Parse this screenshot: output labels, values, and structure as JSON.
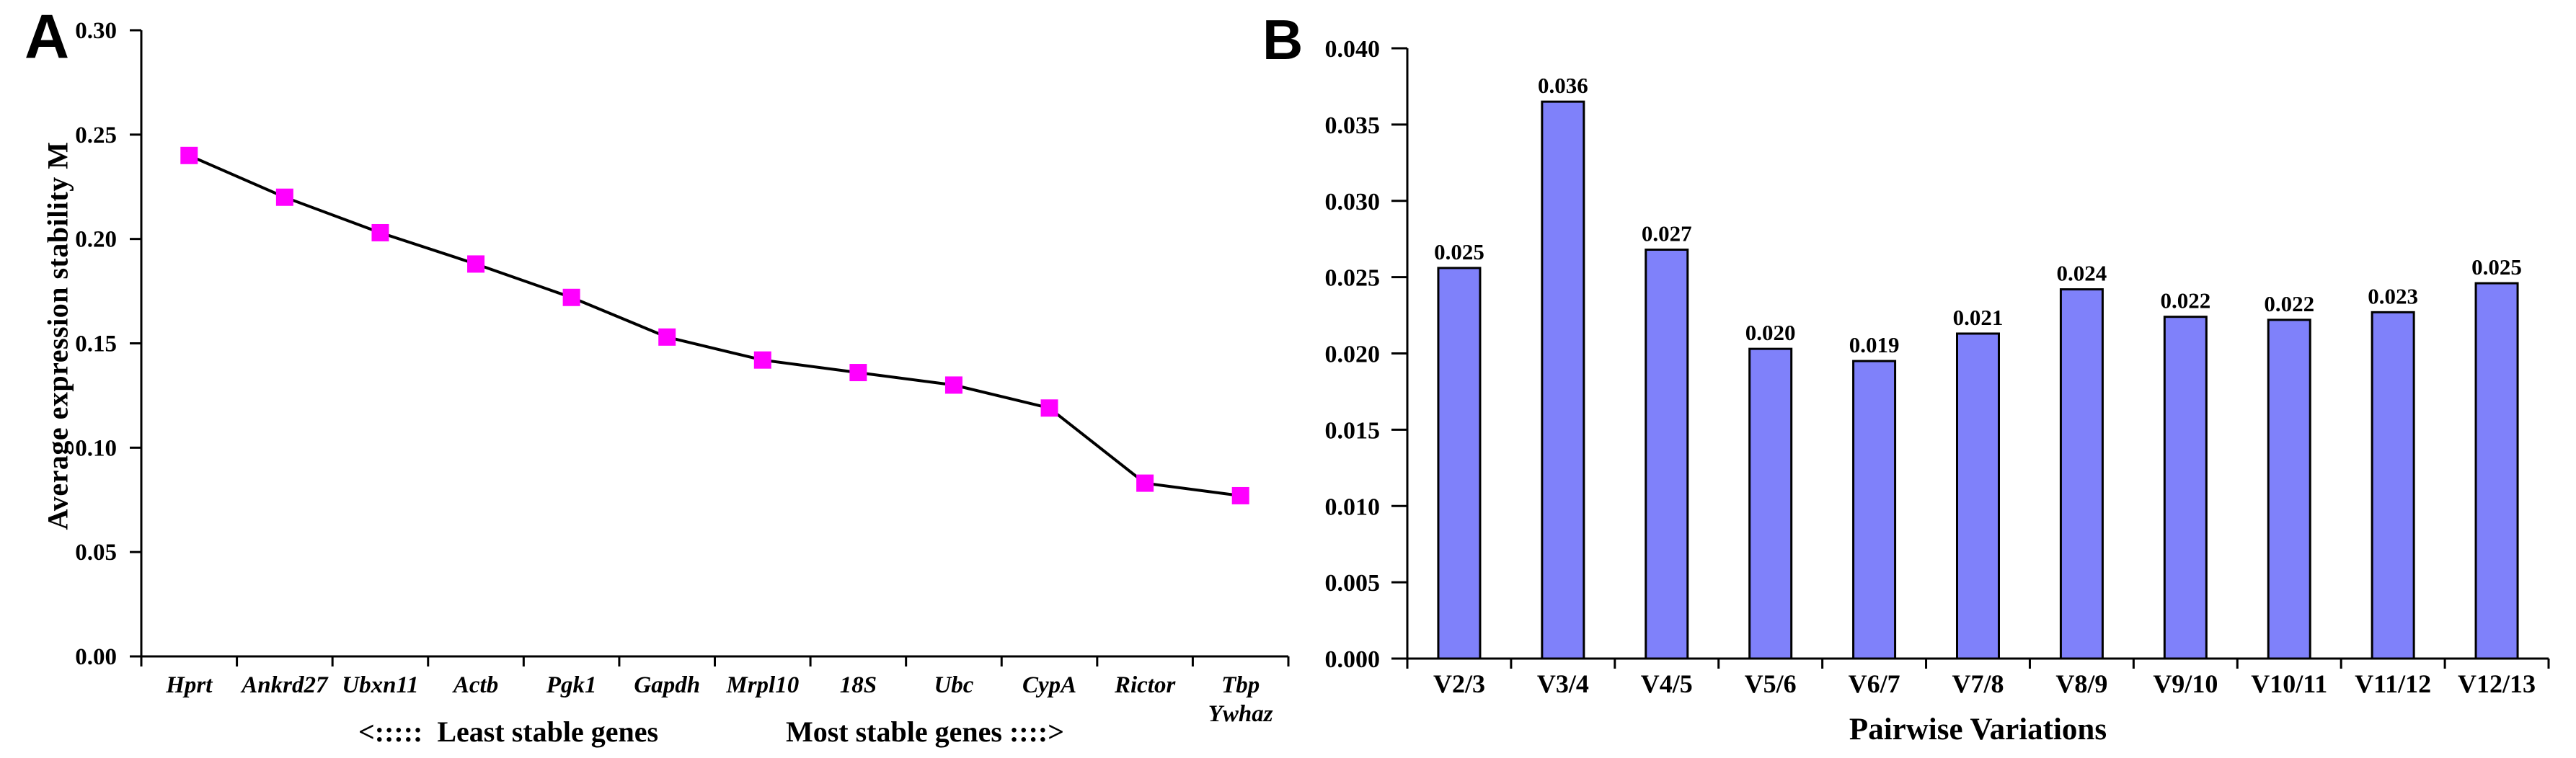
{
  "figure": {
    "panel_a": {
      "label": "A",
      "y_axis_title": "Average expression stability M",
      "annotation_left": "<:::::  Least stable genes",
      "annotation_right": "Most stable genes ::::>"
    },
    "panel_b": {
      "label": "B",
      "x_axis_title": "Pairwise Variations"
    }
  },
  "chart_data": [
    {
      "panel": "A",
      "type": "line",
      "title": "",
      "xlabel": "",
      "ylabel": "Average expression stability M",
      "categories": [
        "Hprt",
        "Ankrd27",
        "Ubxn11",
        "Actb",
        "Pgk1",
        "Gapdh",
        "Mrpl10",
        "18S",
        "Ubc",
        "CypA",
        "Rictor",
        "Tbp\nYwhaz"
      ],
      "values": [
        0.24,
        0.22,
        0.203,
        0.188,
        0.172,
        0.153,
        0.142,
        0.136,
        0.13,
        0.119,
        0.083,
        0.077
      ],
      "ylim": [
        0.0,
        0.3
      ],
      "yticks": [
        "0.30",
        "0.25",
        "0.20",
        "0.15",
        "0.10",
        "0.05",
        "0.00"
      ],
      "grid": false,
      "marker": "square",
      "marker_color": "#FF00FF",
      "line_color": "#000000",
      "axis_color": "#000000",
      "annotation": "<:::::  Least stable genes        Most stable genes ::::>"
    },
    {
      "panel": "B",
      "type": "bar",
      "title": "",
      "xlabel": "Pairwise Variations",
      "ylabel": "",
      "categories": [
        "V2/3",
        "V3/4",
        "V4/5",
        "V5/6",
        "V6/7",
        "V7/8",
        "V8/9",
        "V9/10",
        "V10/11",
        "V11/12",
        "V12/13"
      ],
      "values": [
        0.025,
        0.036,
        0.027,
        0.02,
        0.019,
        0.021,
        0.024,
        0.022,
        0.022,
        0.023,
        0.025
      ],
      "bar_labels": [
        "0.025",
        "0.036",
        "0.027",
        "0.020",
        "0.019",
        "0.021",
        "0.024",
        "0.022",
        "0.022",
        "0.023",
        "0.025"
      ],
      "plotted_heights": [
        0.0256,
        0.0365,
        0.0268,
        0.0203,
        0.0195,
        0.0213,
        0.0242,
        0.0224,
        0.0222,
        0.0227,
        0.0246
      ],
      "ylim": [
        0.0,
        0.04
      ],
      "yticks": [
        "0.040",
        "0.035",
        "0.030",
        "0.025",
        "0.020",
        "0.015",
        "0.010",
        "0.005",
        "0.000"
      ],
      "grid": false,
      "bar_color": "#7F81FA",
      "bar_border_color": "#000000",
      "axis_color": "#000000"
    }
  ]
}
